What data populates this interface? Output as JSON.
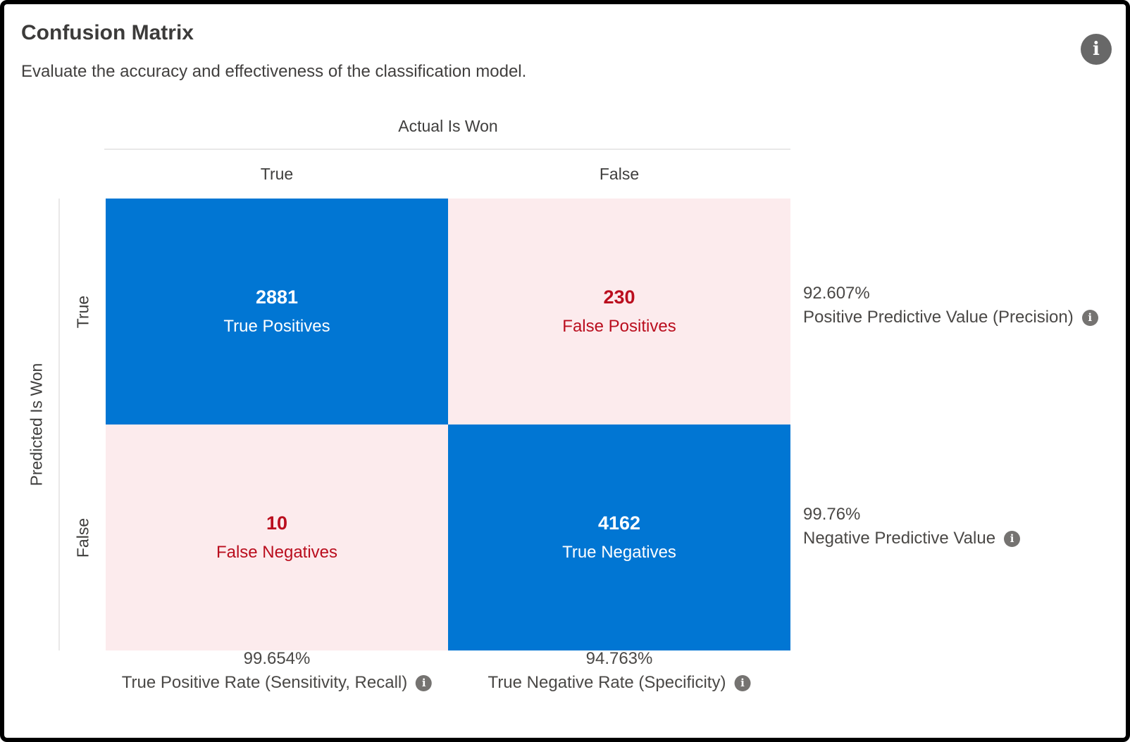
{
  "header": {
    "title": "Confusion Matrix",
    "subtitle": "Evaluate the accuracy and effectiveness of the classification model."
  },
  "icons": {
    "info_glyph": "i"
  },
  "matrix": {
    "x_axis_title": "Actual Is Won",
    "y_axis_title": "Predicted Is Won",
    "col_true": "True",
    "col_false": "False",
    "row_true": "True",
    "row_false": "False",
    "cells": {
      "tp": {
        "value": "2881",
        "label": "True Positives"
      },
      "fp": {
        "value": "230",
        "label": "False Positives"
      },
      "fn": {
        "value": "10",
        "label": "False Negatives"
      },
      "tn": {
        "value": "4162",
        "label": "True Negatives"
      }
    }
  },
  "metrics": {
    "precision": {
      "value": "92.607%",
      "label": "Positive Predictive Value (Precision)"
    },
    "npv": {
      "value": "99.76%",
      "label": "Negative Predictive Value"
    },
    "recall": {
      "value": "99.654%",
      "label": "True Positive Rate (Sensitivity, Recall)"
    },
    "specificity": {
      "value": "94.763%",
      "label": "True Negative Rate (Specificity)"
    }
  },
  "colors": {
    "cell_blue": "#0176D3",
    "cell_pink": "#FCEBED",
    "red_text": "#BA0E1E",
    "title_text": "#3C3B3A",
    "body_text": "#4A4846",
    "icon_gray": "#6E6D6B",
    "divider_gray": "#E9E8E8"
  },
  "chart_data": {
    "type": "heatmap",
    "title": "Confusion Matrix",
    "subtitle": "Evaluate the accuracy and effectiveness of the classification model.",
    "x_axis": {
      "label": "Actual Is Won",
      "categories": [
        "True",
        "False"
      ]
    },
    "y_axis": {
      "label": "Predicted Is Won",
      "categories": [
        "True",
        "False"
      ]
    },
    "cells": [
      {
        "predicted": "True",
        "actual": "True",
        "value": 2881,
        "label": "True Positives",
        "highlight": "blue"
      },
      {
        "predicted": "True",
        "actual": "False",
        "value": 230,
        "label": "False Positives",
        "highlight": "pink"
      },
      {
        "predicted": "False",
        "actual": "True",
        "value": 10,
        "label": "False Negatives",
        "highlight": "pink"
      },
      {
        "predicted": "False",
        "actual": "False",
        "value": 4162,
        "label": "True Negatives",
        "highlight": "blue"
      }
    ],
    "derived_metrics": [
      {
        "value": 92.607,
        "unit": "%",
        "label": "Positive Predictive Value (Precision)",
        "position": "right of row True"
      },
      {
        "value": 99.76,
        "unit": "%",
        "label": "Negative Predictive Value",
        "position": "right of row False"
      },
      {
        "value": 99.654,
        "unit": "%",
        "label": "True Positive Rate (Sensitivity, Recall)",
        "position": "below column True"
      },
      {
        "value": 94.763,
        "unit": "%",
        "label": "True Negative Rate (Specificity)",
        "position": "below column False"
      }
    ],
    "legend_position": "none",
    "grid": false
  }
}
